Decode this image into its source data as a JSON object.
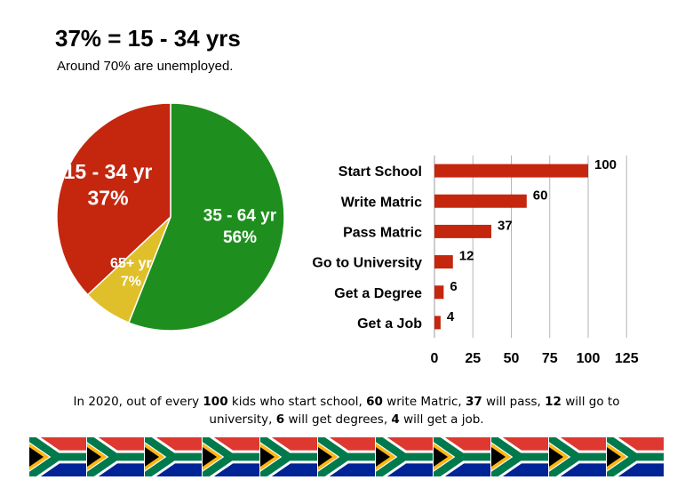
{
  "title": "37% = 15 - 34 yrs",
  "subtitle": "Around 70% are unemployed.",
  "chart_data": [
    {
      "type": "pie",
      "slices": [
        {
          "label_line1": "35 - 64 yr",
          "label_line2": "56%",
          "value": 56,
          "color": "#1e8f1e"
        },
        {
          "label_line1": "65+ yr",
          "label_line2": "7%",
          "value": 7,
          "color": "#dfc02a"
        },
        {
          "label_line1": "15 - 34 yr",
          "label_line2": "37%",
          "value": 37,
          "color": "#c4260e"
        }
      ]
    },
    {
      "type": "bar",
      "orientation": "horizontal",
      "categories": [
        "Start School",
        "Write Matric",
        "Pass Matric",
        "Go to University",
        "Get a Degree",
        "Get a Job"
      ],
      "values": [
        100,
        60,
        37,
        12,
        6,
        4
      ],
      "xlim": [
        0,
        125
      ],
      "xticks": [
        "0",
        "25",
        "50",
        "75",
        "100",
        "125"
      ],
      "bar_color": "#c4260e",
      "grid": true
    }
  ],
  "caption": {
    "p1": "In 2020, out of every ",
    "b1": "100",
    "p2": " kids who start school, ",
    "b2": "60",
    "p3": " write Matric, ",
    "b3": "37",
    "p4": " will pass, ",
    "b4": "12",
    "p5": " will go to university, ",
    "b5": "6",
    "p6": " will get degrees, ",
    "b6": "4",
    "p7": " will get a job."
  },
  "flags": {
    "count": 11,
    "colors": {
      "red": "#de3831",
      "blue": "#002395",
      "green": "#007a4d",
      "gold": "#ffb612",
      "black": "#000000",
      "white": "#ffffff"
    }
  }
}
